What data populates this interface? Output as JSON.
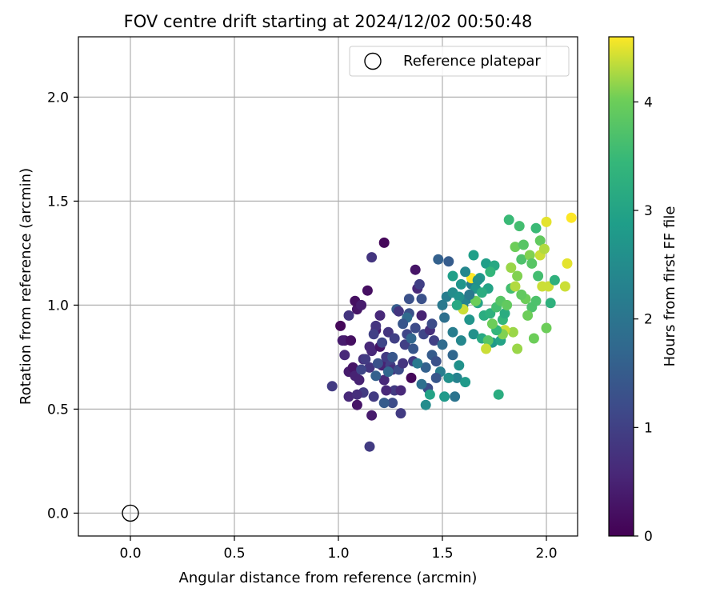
{
  "chart_data": {
    "type": "scatter",
    "title": "FOV centre drift starting at 2024/12/02 00:50:48",
    "xlabel": "Angular distance from reference (arcmin)",
    "ylabel": "Rotation from reference (arcmin)",
    "xlim": [
      -0.25,
      2.15
    ],
    "ylim": [
      -0.11,
      2.29
    ],
    "xticks": [
      "0.0",
      "0.5",
      "1.0",
      "1.5",
      "2.0"
    ],
    "yticks": [
      "0.0",
      "0.5",
      "1.0",
      "1.5",
      "2.0"
    ],
    "grid": true,
    "legend": {
      "placement": "top-right",
      "entries": [
        "Reference platepar"
      ]
    },
    "reference_point": {
      "x": 0.0,
      "y": 0.0,
      "name": "Reference platepar"
    },
    "colorbar": {
      "label": "Hours from first FF file",
      "colormap": "viridis",
      "range": [
        0,
        4.6
      ],
      "ticks": [
        "0",
        "1",
        "2",
        "3",
        "4"
      ]
    },
    "points": [
      [
        1.22,
        1.3,
        0.1
      ],
      [
        1.16,
        1.23,
        0.8
      ],
      [
        1.15,
        0.32,
        0.9
      ],
      [
        1.16,
        0.47,
        0.4
      ],
      [
        1.03,
        0.83,
        0.3
      ],
      [
        1.01,
        0.9,
        0.1
      ],
      [
        1.05,
        0.95,
        0.8
      ],
      [
        1.09,
        0.98,
        0.3
      ],
      [
        1.08,
        1.02,
        0.2
      ],
      [
        1.11,
        1.0,
        0.4
      ],
      [
        1.14,
        1.07,
        0.2
      ],
      [
        1.18,
        0.88,
        0.4
      ],
      [
        1.2,
        0.95,
        0.6
      ],
      [
        0.97,
        0.61,
        0.9
      ],
      [
        1.02,
        0.83,
        0.4
      ],
      [
        1.03,
        0.76,
        0.6
      ],
      [
        1.05,
        0.68,
        0.4
      ],
      [
        1.06,
        0.83,
        0.2
      ],
      [
        1.07,
        0.7,
        0.3
      ],
      [
        1.08,
        0.66,
        0.5
      ],
      [
        1.09,
        0.52,
        0.3
      ],
      [
        1.05,
        0.56,
        0.6
      ],
      [
        1.1,
        0.64,
        0.5
      ],
      [
        1.12,
        0.58,
        0.9
      ],
      [
        1.12,
        0.74,
        0.7
      ],
      [
        1.15,
        0.7,
        0.8
      ],
      [
        1.16,
        0.78,
        0.6
      ],
      [
        1.17,
        0.56,
        0.9
      ],
      [
        1.18,
        0.9,
        0.8
      ],
      [
        1.2,
        0.8,
        0.3
      ],
      [
        1.21,
        0.71,
        0.5
      ],
      [
        1.22,
        0.64,
        0.6
      ],
      [
        1.23,
        0.75,
        0.9
      ],
      [
        1.24,
        0.87,
        0.8
      ],
      [
        1.25,
        0.71,
        1.0
      ],
      [
        1.26,
        0.69,
        0.7
      ],
      [
        1.26,
        0.53,
        1.2
      ],
      [
        1.27,
        0.59,
        0.9
      ],
      [
        1.28,
        0.98,
        1.5
      ],
      [
        1.29,
        0.69,
        1.2
      ],
      [
        1.3,
        0.48,
        0.9
      ],
      [
        1.3,
        0.59,
        0.6
      ],
      [
        1.31,
        0.72,
        0.8
      ],
      [
        1.32,
        0.81,
        1.0
      ],
      [
        1.33,
        0.86,
        1.1
      ],
      [
        1.34,
        0.96,
        1.3
      ],
      [
        1.35,
        0.65,
        0.1
      ],
      [
        1.36,
        0.73,
        0.9
      ],
      [
        1.37,
        0.89,
        1.2
      ],
      [
        1.37,
        1.17,
        0.3
      ],
      [
        1.38,
        1.08,
        0.6
      ],
      [
        1.39,
        1.1,
        1.0
      ],
      [
        1.4,
        1.03,
        1.3
      ],
      [
        1.4,
        0.95,
        0.5
      ],
      [
        1.41,
        0.86,
        1.1
      ],
      [
        1.42,
        0.7,
        1.6
      ],
      [
        1.43,
        0.6,
        1.2
      ],
      [
        1.44,
        0.88,
        0.7
      ],
      [
        1.45,
        0.76,
        1.5
      ],
      [
        1.46,
        0.83,
        1.0
      ],
      [
        1.47,
        0.73,
        1.3
      ],
      [
        1.48,
        1.22,
        1.6
      ],
      [
        1.5,
        0.81,
        1.8
      ],
      [
        1.5,
        1.0,
        2.1
      ],
      [
        1.51,
        0.94,
        1.9
      ],
      [
        1.52,
        1.04,
        2.2
      ],
      [
        1.53,
        1.21,
        1.5
      ],
      [
        1.55,
        1.06,
        2.5
      ],
      [
        1.55,
        0.87,
        2.2
      ],
      [
        1.56,
        0.56,
        2.0
      ],
      [
        1.57,
        0.65,
        2.3
      ],
      [
        1.58,
        0.71,
        2.6
      ],
      [
        1.59,
        0.83,
        2.4
      ],
      [
        1.6,
        1.0,
        2.3
      ],
      [
        1.61,
        0.63,
        2.8
      ],
      [
        1.62,
        1.03,
        2.3
      ],
      [
        1.63,
        0.93,
        2.7
      ],
      [
        1.64,
        1.1,
        2.2
      ],
      [
        1.65,
        0.86,
        2.6
      ],
      [
        1.66,
        1.08,
        2.7
      ],
      [
        1.67,
        1.01,
        3.0
      ],
      [
        1.68,
        1.13,
        2.8
      ],
      [
        1.69,
        0.84,
        3.1
      ],
      [
        1.7,
        0.95,
        3.2
      ],
      [
        1.71,
        1.2,
        2.9
      ],
      [
        1.72,
        1.08,
        3.0
      ],
      [
        1.73,
        0.96,
        3.3
      ],
      [
        1.74,
        0.82,
        2.8
      ],
      [
        1.75,
        1.19,
        3.1
      ],
      [
        1.77,
        0.57,
        3.2
      ],
      [
        1.78,
        0.83,
        3.0
      ],
      [
        1.79,
        0.93,
        3.4
      ],
      [
        1.8,
        0.96,
        3.2
      ],
      [
        1.82,
        1.41,
        3.5
      ],
      [
        1.83,
        1.08,
        3.6
      ],
      [
        1.84,
        0.87,
        4.2
      ],
      [
        1.85,
        1.28,
        4.0
      ],
      [
        1.86,
        0.79,
        4.2
      ],
      [
        1.87,
        1.38,
        3.6
      ],
      [
        1.88,
        1.22,
        3.7
      ],
      [
        1.89,
        1.29,
        3.8
      ],
      [
        1.9,
        1.03,
        4.0
      ],
      [
        1.92,
        1.24,
        4.1
      ],
      [
        1.93,
        0.99,
        3.7
      ],
      [
        1.94,
        0.84,
        4.0
      ],
      [
        1.95,
        1.37,
        3.5
      ],
      [
        1.96,
        1.14,
        3.6
      ],
      [
        1.97,
        1.31,
        3.9
      ],
      [
        1.98,
        1.09,
        4.4
      ],
      [
        2.0,
        1.4,
        4.5
      ],
      [
        2.01,
        1.09,
        4.4
      ],
      [
        2.02,
        1.01,
        3.3
      ],
      [
        2.04,
        1.12,
        3.3
      ],
      [
        2.1,
        1.2,
        4.5
      ],
      [
        2.12,
        1.42,
        4.6
      ],
      [
        2.0,
        0.89,
        4.0
      ],
      [
        2.09,
        1.09,
        4.4
      ],
      [
        1.85,
        1.09,
        4.3
      ],
      [
        1.8,
        0.88,
        4.4
      ],
      [
        1.79,
        0.86,
        4.1
      ],
      [
        1.76,
        0.88,
        3.4
      ],
      [
        1.74,
        0.91,
        4.0
      ],
      [
        1.72,
        0.83,
        3.8
      ],
      [
        1.71,
        0.79,
        4.4
      ],
      [
        1.66,
        1.02,
        4.0
      ],
      [
        1.64,
        1.13,
        4.6
      ],
      [
        1.6,
        0.98,
        4.4
      ],
      [
        1.58,
        1.04,
        2.6
      ],
      [
        1.55,
        0.76,
        1.7
      ],
      [
        1.53,
        0.65,
        2.6
      ],
      [
        1.51,
        0.56,
        2.8
      ],
      [
        1.49,
        0.68,
        2.2
      ],
      [
        1.47,
        0.65,
        1.4
      ],
      [
        1.45,
        0.91,
        1.2
      ],
      [
        1.44,
        0.57,
        3.0
      ],
      [
        1.42,
        0.52,
        2.5
      ],
      [
        1.4,
        0.62,
        1.9
      ],
      [
        1.38,
        0.72,
        2.1
      ],
      [
        1.36,
        0.79,
        1.4
      ],
      [
        1.35,
        0.84,
        1.7
      ],
      [
        1.34,
        1.03,
        1.3
      ],
      [
        1.33,
        0.94,
        1.8
      ],
      [
        1.31,
        0.91,
        1.4
      ],
      [
        1.29,
        0.97,
        0.8
      ],
      [
        1.27,
        0.84,
        1.0
      ],
      [
        1.26,
        0.75,
        1.4
      ],
      [
        1.24,
        0.68,
        1.7
      ],
      [
        1.23,
        0.59,
        0.6
      ],
      [
        1.22,
        0.53,
        1.5
      ],
      [
        1.21,
        0.82,
        1.1
      ],
      [
        1.19,
        0.72,
        1.3
      ],
      [
        1.18,
        0.66,
        1.6
      ],
      [
        1.17,
        0.86,
        1.0
      ],
      [
        1.15,
        0.8,
        0.6
      ],
      [
        1.13,
        0.74,
        0.9
      ],
      [
        1.11,
        0.69,
        1.1
      ],
      [
        1.09,
        0.57,
        0.7
      ],
      [
        1.55,
        1.14,
        2.9
      ],
      [
        1.57,
        1.0,
        3.1
      ],
      [
        1.59,
        1.1,
        2.7
      ],
      [
        1.61,
        1.16,
        2.4
      ],
      [
        1.63,
        1.05,
        2.1
      ],
      [
        1.65,
        1.24,
        2.9
      ],
      [
        1.67,
        1.12,
        2.6
      ],
      [
        1.69,
        1.06,
        3.2
      ],
      [
        1.73,
        1.16,
        3.4
      ],
      [
        1.76,
        0.99,
        3.6
      ],
      [
        1.78,
        1.02,
        3.8
      ],
      [
        1.81,
        1.0,
        3.9
      ],
      [
        1.83,
        1.18,
        4.2
      ],
      [
        1.86,
        1.14,
        4.1
      ],
      [
        1.88,
        1.05,
        3.9
      ],
      [
        1.91,
        0.95,
        4.0
      ],
      [
        1.93,
        1.2,
        3.8
      ],
      [
        1.95,
        1.02,
        3.7
      ],
      [
        1.97,
        1.24,
        4.4
      ],
      [
        1.99,
        1.27,
        4.3
      ]
    ]
  }
}
